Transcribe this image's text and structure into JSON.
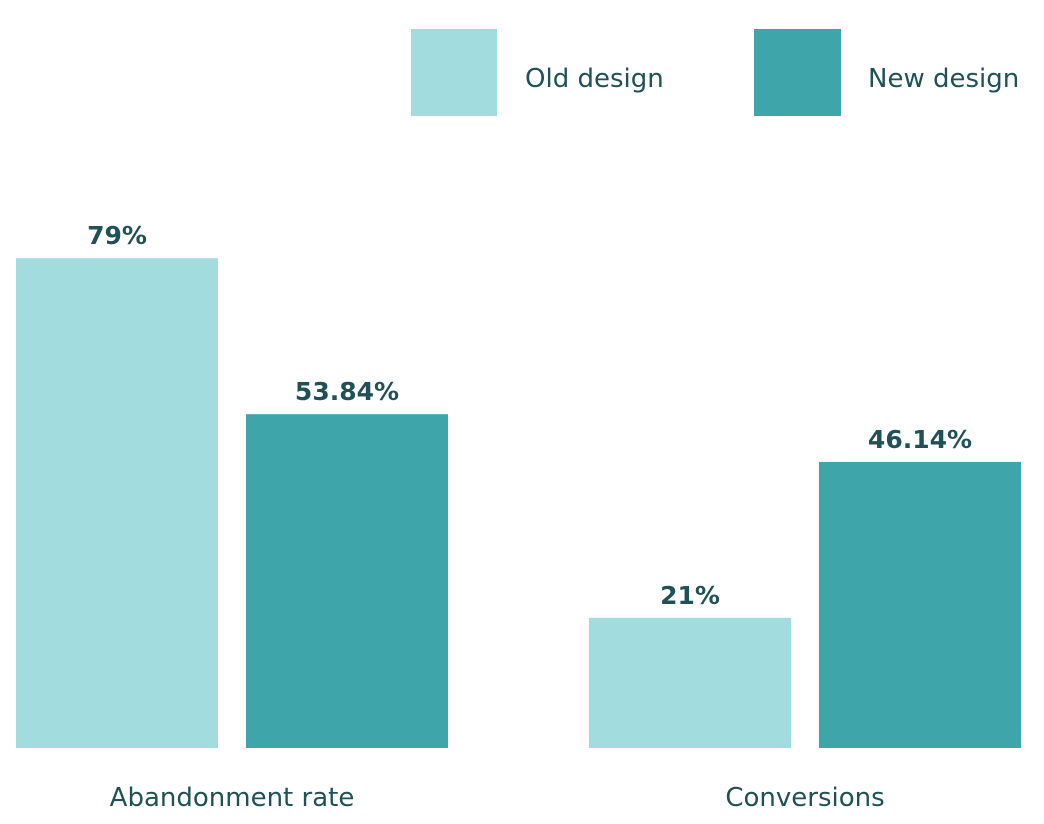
{
  "chart_data": {
    "type": "bar",
    "categories": [
      "Abandonment rate",
      "Conversions"
    ],
    "series": [
      {
        "name": "Old design",
        "values": [
          79,
          21
        ],
        "labels": [
          "79%",
          "21%"
        ],
        "color": "#a3dcde"
      },
      {
        "name": "New design",
        "values": [
          53.84,
          46.14
        ],
        "labels": [
          "53.84%",
          "46.14%"
        ],
        "color": "#3ea6ab"
      }
    ],
    "ylim": [
      0,
      100
    ],
    "legend_position": "top-right",
    "grid": false,
    "text_color": "#1f5157"
  }
}
